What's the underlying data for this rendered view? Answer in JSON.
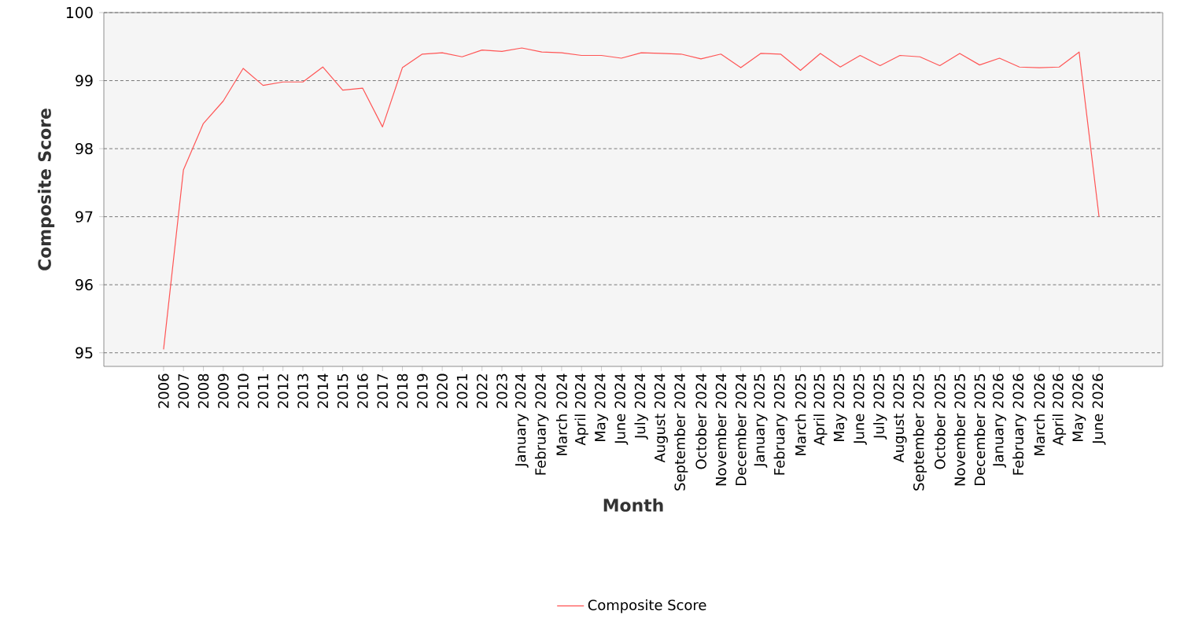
{
  "chart_data": {
    "type": "line",
    "xlabel": "Month",
    "ylabel": "Composite Score",
    "categories": [
      "2006",
      "2007",
      "2008",
      "2009",
      "2010",
      "2011",
      "2012",
      "2013",
      "2014",
      "2015",
      "2016",
      "2017",
      "2018",
      "2019",
      "2020",
      "2021",
      "2022",
      "2023",
      "January 2024",
      "February 2024",
      "March 2024",
      "April 2024",
      "May 2024",
      "June 2024",
      "July 2024",
      "August 2024",
      "September 2024",
      "October 2024",
      "November 2024",
      "December 2024",
      "January 2025",
      "February 2025",
      "March 2025",
      "April 2025",
      "May 2025",
      "June 2025",
      "July 2025",
      "August 2025",
      "September 2025",
      "October 2025",
      "November 2025",
      "December 2025",
      "January 2026",
      "February 2026",
      "March 2026",
      "April 2026",
      "May 2026",
      "June 2026"
    ],
    "series": [
      {
        "name": "Composite Score",
        "color": "#ff5555",
        "values": [
          95.05,
          97.69,
          98.37,
          98.7,
          99.18,
          98.93,
          98.98,
          98.98,
          99.2,
          98.86,
          98.89,
          98.32,
          99.19,
          99.39,
          99.41,
          99.35,
          99.45,
          99.43,
          99.48,
          99.42,
          99.41,
          99.37,
          99.37,
          99.33,
          99.41,
          99.4,
          99.39,
          99.32,
          99.39,
          99.19,
          99.4,
          99.39,
          99.15,
          99.4,
          99.2,
          99.37,
          99.22,
          99.37,
          99.35,
          99.22,
          99.4,
          99.23,
          99.33,
          99.2,
          99.19,
          99.2,
          99.42,
          97.0
        ]
      }
    ],
    "ylim": [
      94.8,
      100
    ],
    "yticks": [
      95,
      96,
      97,
      98,
      99,
      100
    ],
    "grid": "y",
    "legend": "bottom",
    "marker": "none",
    "line_style": "solid"
  }
}
